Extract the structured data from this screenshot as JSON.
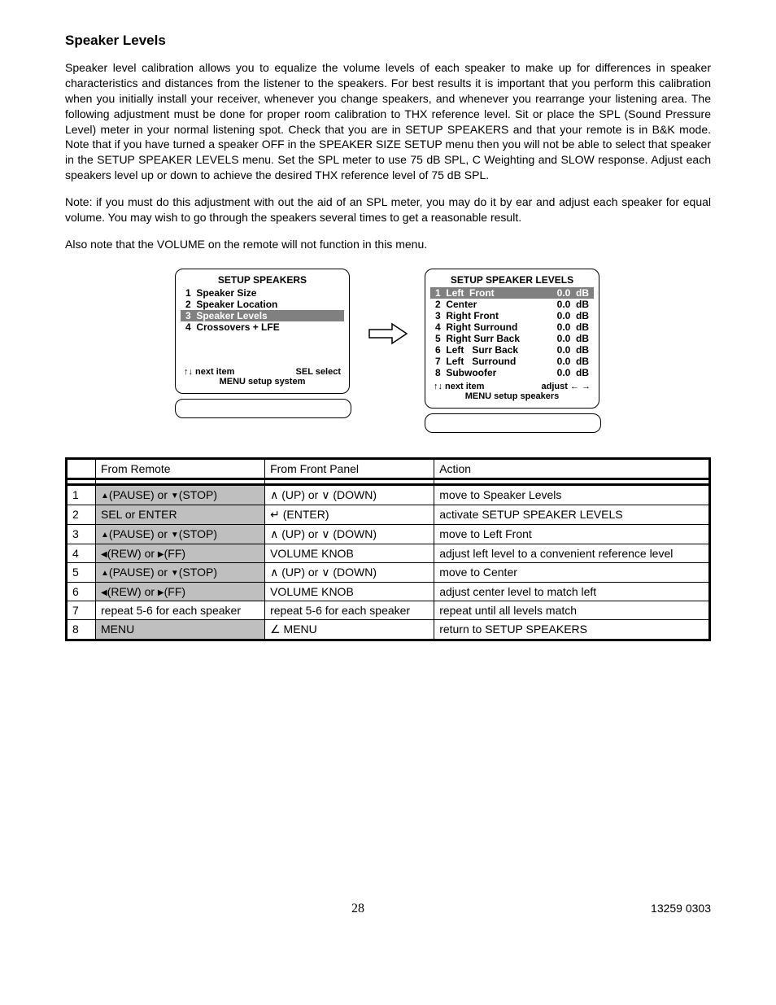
{
  "title": "Speaker Levels",
  "para1": "Speaker level calibration allows you to equalize the volume levels of each speaker to make up for differences in speaker characteristics and distances from the listener to the speakers. For best results it is important that you perform this calibration when you initially install your receiver, whenever you change speakers, and whenever you rearrange your listening area. The following adjustment must be done for proper room calibration to THX reference level. Sit or place the SPL (Sound Pressure Level) meter in your normal listening spot. Check that you are in SETUP SPEAKERS and that your remote is in B&K mode. Note that if you have turned a speaker OFF in the SPEAKER SIZE SETUP menu then you will not be able to select that speaker in the SETUP SPEAKER LEVELS menu. Set the SPL meter to use 75 dB SPL, C Weighting and SLOW response. Adjust each speakers level up or down to achieve the desired THX reference level of 75 dB SPL.",
  "para2": "Note: if you must do this adjustment with out the aid of an SPL meter, you may do it by ear and adjust each speaker for equal volume. You may wish to go through the speakers several times to get a reasonable result.",
  "para3": "Also note that the VOLUME on the remote will not function in this menu.",
  "menu1": {
    "title": "SETUP SPEAKERS",
    "items": [
      {
        "n": "1",
        "label": "Speaker Size",
        "sel": false
      },
      {
        "n": "2",
        "label": "Speaker Location",
        "sel": false
      },
      {
        "n": "3",
        "label": "Speaker Levels",
        "sel": true
      },
      {
        "n": "4",
        "label": "Crossovers + LFE",
        "sel": false
      }
    ],
    "foot_left": "↑↓   next item",
    "foot_right": "SEL  select",
    "foot_center": "MENU setup system"
  },
  "menu2": {
    "title": "SETUP SPEAKER LEVELS",
    "items": [
      {
        "n": "1",
        "label": "Left  Front",
        "val": "0.0",
        "unit": "dB",
        "sel": true
      },
      {
        "n": "2",
        "label": "Center",
        "val": "0.0",
        "unit": "dB",
        "sel": false
      },
      {
        "n": "3",
        "label": "Right Front",
        "val": "0.0",
        "unit": "dB",
        "sel": false
      },
      {
        "n": "4",
        "label": "Right Surround",
        "val": "0.0",
        "unit": "dB",
        "sel": false
      },
      {
        "n": "5",
        "label": "Right Surr Back",
        "val": "0.0",
        "unit": "dB",
        "sel": false
      },
      {
        "n": "6",
        "label": "Left   Surr Back",
        "val": "0.0",
        "unit": "dB",
        "sel": false
      },
      {
        "n": "7",
        "label": "Left   Surround",
        "val": "0.0",
        "unit": "dB",
        "sel": false
      },
      {
        "n": "8",
        "label": "Subwoofer",
        "val": "0.0",
        "unit": "dB",
        "sel": false
      }
    ],
    "foot_left": "↑↓ next item",
    "foot_right": "adjust  ← →",
    "foot_center": "MENU setup speakers"
  },
  "table": {
    "headers": [
      "",
      "From Remote",
      "From Front Panel",
      "Action"
    ],
    "rows": [
      {
        "n": "1",
        "remote_shaded": true,
        "remote": "▲(PAUSE) or ▼(STOP)",
        "panel": "∧ (UP) or ∨ (DOWN)",
        "action": "move to Speaker Levels"
      },
      {
        "n": "2",
        "remote_shaded": true,
        "remote": "SEL or ENTER",
        "panel": "↵ (ENTER)",
        "action": "activate SETUP SPEAKER LEVELS"
      },
      {
        "n": "3",
        "remote_shaded": true,
        "remote": "▲(PAUSE) or ▼(STOP)",
        "panel": "∧ (UP) or ∨ (DOWN)",
        "action": "move to Left Front"
      },
      {
        "n": "4",
        "remote_shaded": true,
        "remote": "◀(REW) or ▶(FF)",
        "panel": "VOLUME KNOB",
        "action": "adjust left level to a convenient reference level"
      },
      {
        "n": "5",
        "remote_shaded": true,
        "remote": "▲(PAUSE) or ▼(STOP)",
        "panel": "∧ (UP) or ∨ (DOWN)",
        "action": "move to Center"
      },
      {
        "n": "6",
        "remote_shaded": true,
        "remote": "◀(REW) or ▶(FF)",
        "panel": "VOLUME KNOB",
        "action": "adjust center level to match left"
      },
      {
        "n": "7",
        "remote_shaded": false,
        "remote": "repeat 5-6 for each speaker",
        "panel": "repeat 5-6 for each speaker",
        "action": "repeat until all levels match"
      },
      {
        "n": "8",
        "remote_shaded": true,
        "remote": "MENU",
        "panel": "∠ MENU",
        "action": "return to SETUP SPEAKERS"
      }
    ]
  },
  "footer": {
    "page": "28",
    "doc": "13259 0303"
  }
}
